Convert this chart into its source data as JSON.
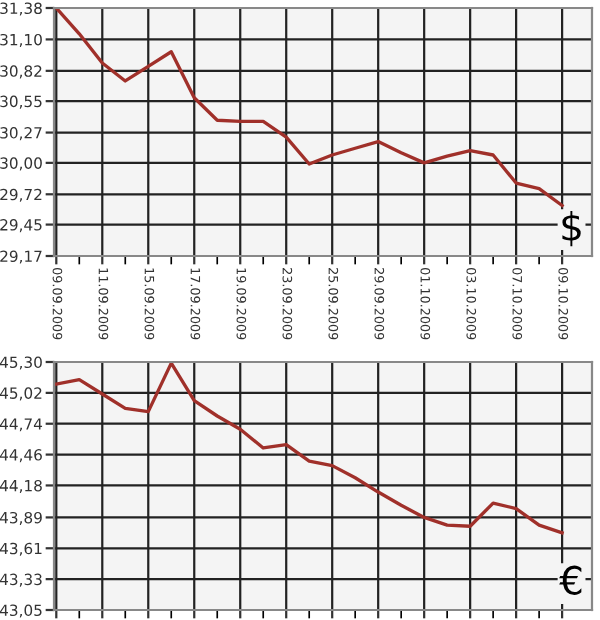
{
  "chart_data": [
    {
      "type": "line",
      "categories": [
        "09.09.2009",
        null,
        "11.09.2009",
        null,
        "15.09.2009",
        null,
        "17.09.2009",
        null,
        "19.09.2009",
        null,
        "23.09.2009",
        null,
        "25.09.2009",
        null,
        "29.09.2009",
        null,
        "01.10.2009",
        null,
        "03.10.2009",
        null,
        "07.10.2009",
        null,
        "09.10.2009"
      ],
      "series": [
        {
          "color": "#a0302a",
          "values": [
            31.38,
            31.15,
            30.89,
            30.73,
            30.86,
            30.99,
            30.58,
            30.38,
            30.37,
            30.37,
            30.23,
            29.99,
            30.07,
            30.13,
            30.19,
            30.09,
            30.0,
            30.06,
            30.11,
            30.07,
            29.82,
            29.77,
            29.62
          ]
        }
      ],
      "ylim": [
        29.17,
        31.38
      ],
      "yticks": [
        {
          "value": 29.17,
          "label": "29,17"
        },
        {
          "value": 29.45,
          "label": "29,45"
        },
        {
          "value": 29.72,
          "label": "29,72"
        },
        {
          "value": 30.0,
          "label": "30,00"
        },
        {
          "value": 30.27,
          "label": "30,27"
        },
        {
          "value": 30.55,
          "label": "30,55"
        },
        {
          "value": 30.82,
          "label": "30,82"
        },
        {
          "value": 31.1,
          "label": "31,10"
        },
        {
          "value": 31.38,
          "label": "31,38"
        }
      ],
      "grid": true,
      "marker": "none",
      "annotations": [
        "$"
      ]
    },
    {
      "type": "line",
      "categories": [
        "09.09.2009",
        null,
        "11.09.2009",
        null,
        "15.09.2009",
        null,
        "17.09.2009",
        null,
        "19.09.2009",
        null,
        "23.09.2009",
        null,
        "25.09.2009",
        null,
        "29.09.2009",
        null,
        "01.10.2009",
        null,
        "03.10.2009",
        null,
        "07.10.2009",
        null,
        "09.10.2009"
      ],
      "series": [
        {
          "color": "#a0302a",
          "values": [
            45.1,
            45.14,
            45.01,
            44.88,
            44.85,
            45.29,
            44.95,
            44.81,
            44.69,
            44.52,
            44.55,
            44.4,
            44.36,
            44.25,
            44.12,
            44.0,
            43.89,
            43.82,
            43.81,
            44.02,
            43.97,
            43.82,
            43.75
          ]
        }
      ],
      "ylim": [
        43.05,
        45.3
      ],
      "yticks": [
        {
          "value": 43.05,
          "label": "43,05"
        },
        {
          "value": 43.33,
          "label": "43,33"
        },
        {
          "value": 43.61,
          "label": "43,61"
        },
        {
          "value": 43.89,
          "label": "43,89"
        },
        {
          "value": 44.18,
          "label": "44,18"
        },
        {
          "value": 44.46,
          "label": "44,46"
        },
        {
          "value": 44.74,
          "label": "44,74"
        },
        {
          "value": 45.02,
          "label": "45,02"
        },
        {
          "value": 45.3,
          "label": "45,30"
        }
      ],
      "grid": true,
      "marker": "none",
      "tick_labels": "y",
      "annotations": [
        "€"
      ]
    }
  ]
}
